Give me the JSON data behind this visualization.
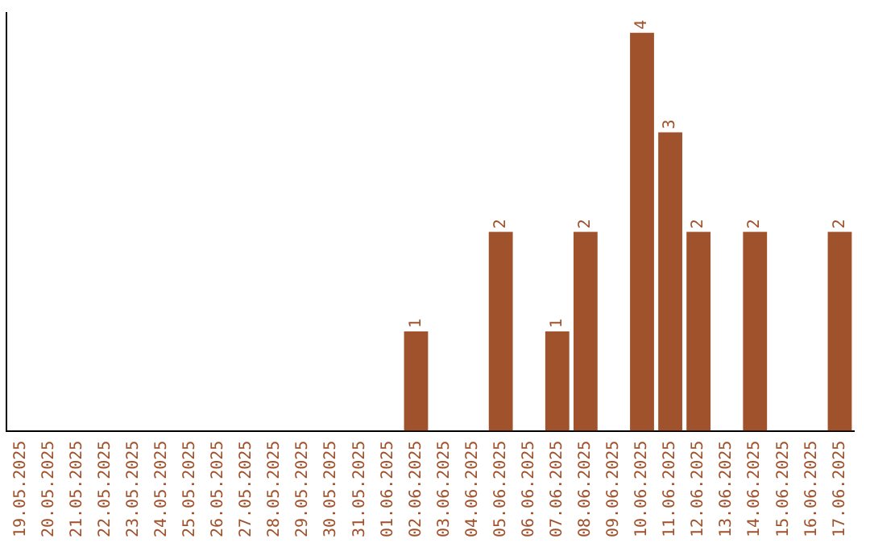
{
  "chart_data": {
    "type": "bar",
    "categories": [
      "19.05.2025",
      "20.05.2025",
      "21.05.2025",
      "22.05.2025",
      "23.05.2025",
      "24.05.2025",
      "25.05.2025",
      "26.05.2025",
      "27.05.2025",
      "28.05.2025",
      "29.05.2025",
      "30.05.2025",
      "31.05.2025",
      "01.06.2025",
      "02.06.2025",
      "03.06.2025",
      "04.06.2025",
      "05.06.2025",
      "06.06.2025",
      "07.06.2025",
      "08.06.2025",
      "09.06.2025",
      "10.06.2025",
      "11.06.2025",
      "12.06.2025",
      "13.06.2025",
      "14.06.2025",
      "15.06.2025",
      "16.06.2025",
      "17.06.2025"
    ],
    "values": [
      null,
      null,
      null,
      null,
      null,
      null,
      null,
      null,
      null,
      null,
      null,
      null,
      null,
      null,
      1,
      null,
      null,
      2,
      null,
      1,
      2,
      null,
      4,
      3,
      2,
      null,
      2,
      null,
      null,
      2
    ],
    "data_labels": true,
    "color": "#a0522d",
    "ylim": [
      0,
      4.2
    ],
    "tick_labels": "x",
    "grid": false,
    "legend": false
  }
}
